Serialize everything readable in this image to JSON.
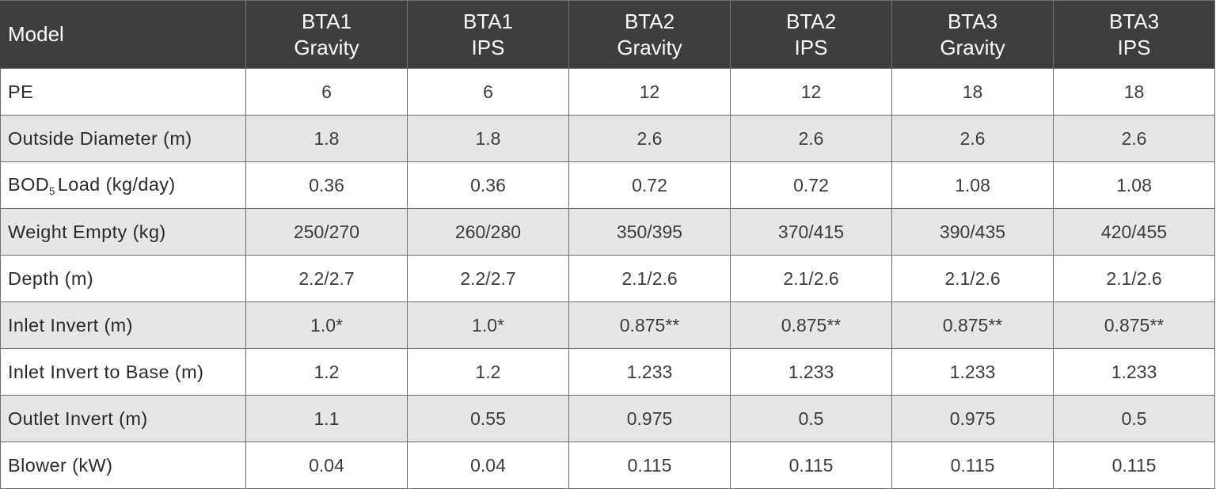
{
  "header": {
    "label": "Model",
    "columns": [
      {
        "line1": "BTA1",
        "line2": "Gravity"
      },
      {
        "line1": "BTA1",
        "line2": "IPS"
      },
      {
        "line1": "BTA2",
        "line2": "Gravity"
      },
      {
        "line1": "BTA2",
        "line2": "IPS"
      },
      {
        "line1": "BTA3",
        "line2": "Gravity"
      },
      {
        "line1": "BTA3",
        "line2": "IPS"
      }
    ]
  },
  "rows": [
    {
      "label": "PE",
      "values": [
        "6",
        "6",
        "12",
        "12",
        "18",
        "18"
      ]
    },
    {
      "label": "Outside Diameter (m)",
      "values": [
        "1.8",
        "1.8",
        "2.6",
        "2.6",
        "2.6",
        "2.6"
      ]
    },
    {
      "label_main": "BOD",
      "label_sub": "5",
      "label_rest": "Load (kg/day)",
      "values": [
        "0.36",
        "0.36",
        "0.72",
        "0.72",
        "1.08",
        "1.08"
      ]
    },
    {
      "label": "Weight Empty (kg)",
      "values": [
        "250/270",
        "260/280",
        "350/395",
        "370/415",
        "390/435",
        "420/455"
      ]
    },
    {
      "label": "Depth (m)",
      "values": [
        "2.2/2.7",
        "2.2/2.7",
        "2.1/2.6",
        "2.1/2.6",
        "2.1/2.6",
        "2.1/2.6"
      ]
    },
    {
      "label": "Inlet Invert (m)",
      "values": [
        "1.0*",
        "1.0*",
        "0.875**",
        "0.875**",
        "0.875**",
        "0.875**"
      ]
    },
    {
      "label": "Inlet Invert to Base (m)",
      "values": [
        "1.2",
        "1.2",
        "1.233",
        "1.233",
        "1.233",
        "1.233"
      ]
    },
    {
      "label": "Outlet Invert (m)",
      "values": [
        "1.1",
        "0.55",
        "0.975",
        "0.5",
        "0.975",
        "0.5"
      ]
    },
    {
      "label": "Blower (kW)",
      "values": [
        "0.04",
        "0.04",
        "0.115",
        "0.115",
        "0.115",
        "0.115"
      ]
    }
  ],
  "colors": {
    "header_bg": "#3e3e40",
    "stripe_bg": "#e6e6e8",
    "border": "#6f6f71"
  }
}
